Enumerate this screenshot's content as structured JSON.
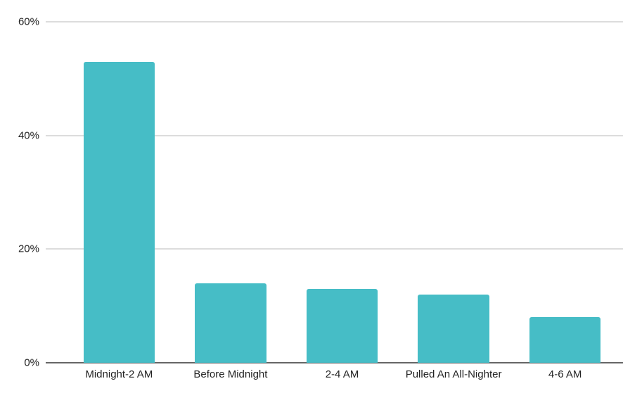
{
  "chart_data": {
    "type": "bar",
    "categories": [
      "Midnight-2 AM",
      "Before Midnight",
      "2-4 AM",
      "Pulled An All-Nighter",
      "4-6 AM"
    ],
    "values": [
      53,
      14,
      13,
      12,
      8
    ],
    "title": "",
    "xlabel": "",
    "ylabel": "",
    "ylim": [
      0,
      60
    ],
    "yticks": [
      0,
      20,
      40,
      60
    ],
    "ytick_labels": [
      "0%",
      "20%",
      "40%",
      "60%"
    ],
    "grid": true,
    "legend_position": "none",
    "colors": {
      "bar": "#46bdc6",
      "gridline": "#dcdcdc",
      "axis_line": "#666666",
      "label_text": "#222222",
      "background": "#ffffff"
    }
  }
}
